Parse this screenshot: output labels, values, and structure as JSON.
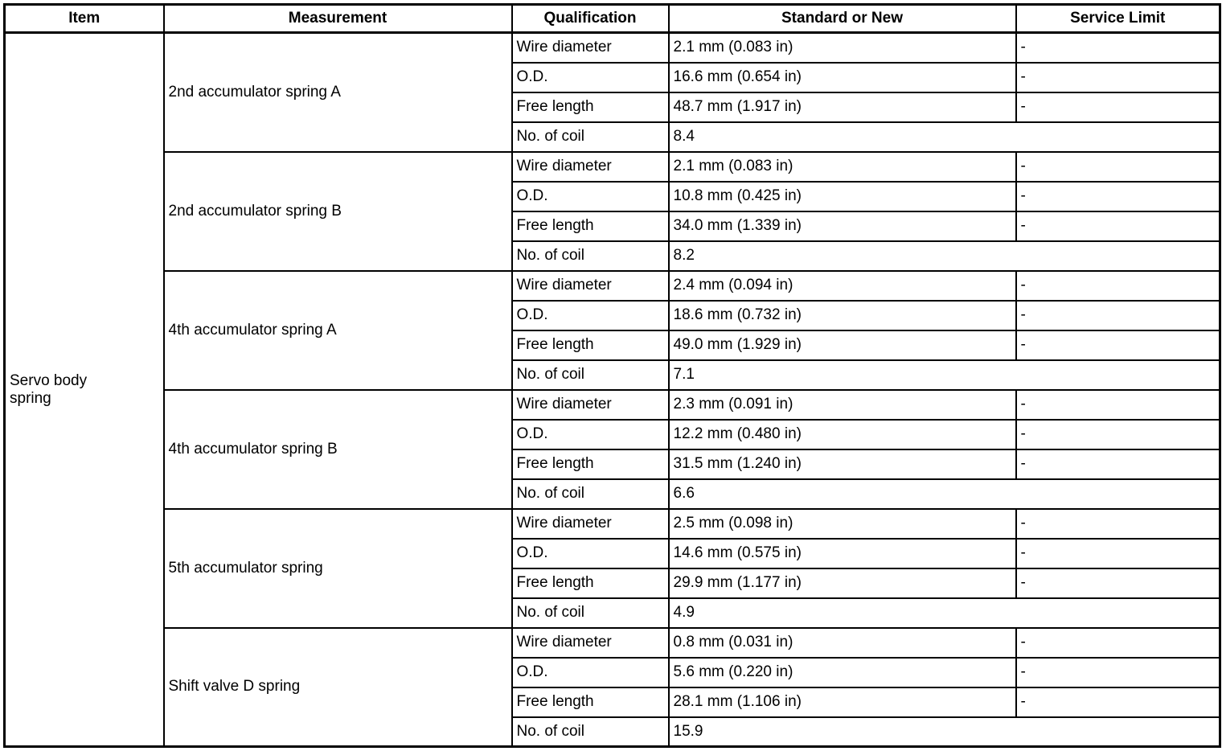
{
  "table": {
    "columns": [
      "Item",
      "Measurement",
      "Qualification",
      "Standard or New",
      "Service Limit"
    ],
    "item": "Servo body spring",
    "no_value_mark": "-",
    "groups": [
      {
        "measurement": "2nd accumulator spring A",
        "rows": [
          {
            "qualification": "Wire diameter",
            "standard": "2.1 mm (0.083 in)",
            "service_limit": "-",
            "span": false
          },
          {
            "qualification": "O.D.",
            "standard": "16.6 mm (0.654 in)",
            "service_limit": "-",
            "span": false
          },
          {
            "qualification": "Free length",
            "standard": "48.7 mm (1.917 in)",
            "service_limit": "-",
            "span": false
          },
          {
            "qualification": "No. of coil",
            "standard": "8.4",
            "service_limit": "",
            "span": true
          }
        ]
      },
      {
        "measurement": "2nd accumulator spring B",
        "rows": [
          {
            "qualification": "Wire diameter",
            "standard": "2.1 mm (0.083 in)",
            "service_limit": "-",
            "span": false
          },
          {
            "qualification": "O.D.",
            "standard": "10.8 mm (0.425 in)",
            "service_limit": "-",
            "span": false
          },
          {
            "qualification": "Free length",
            "standard": "34.0 mm (1.339 in)",
            "service_limit": "-",
            "span": false
          },
          {
            "qualification": "No. of coil",
            "standard": "8.2",
            "service_limit": "",
            "span": true
          }
        ]
      },
      {
        "measurement": "4th accumulator spring A",
        "rows": [
          {
            "qualification": "Wire diameter",
            "standard": "2.4 mm (0.094 in)",
            "service_limit": "-",
            "span": false
          },
          {
            "qualification": "O.D.",
            "standard": "18.6 mm (0.732 in)",
            "service_limit": "-",
            "span": false
          },
          {
            "qualification": "Free length",
            "standard": "49.0 mm (1.929 in)",
            "service_limit": "-",
            "span": false
          },
          {
            "qualification": "No. of coil",
            "standard": "7.1",
            "service_limit": "",
            "span": true
          }
        ]
      },
      {
        "measurement": "4th accumulator spring B",
        "rows": [
          {
            "qualification": "Wire diameter",
            "standard": "2.3 mm (0.091 in)",
            "service_limit": "-",
            "span": false
          },
          {
            "qualification": "O.D.",
            "standard": "12.2 mm (0.480 in)",
            "service_limit": "-",
            "span": false
          },
          {
            "qualification": "Free length",
            "standard": "31.5 mm (1.240 in)",
            "service_limit": "-",
            "span": false
          },
          {
            "qualification": "No. of coil",
            "standard": "6.6",
            "service_limit": "",
            "span": true
          }
        ]
      },
      {
        "measurement": "5th accumulator spring",
        "rows": [
          {
            "qualification": "Wire diameter",
            "standard": "2.5 mm (0.098 in)",
            "service_limit": "-",
            "span": false
          },
          {
            "qualification": "O.D.",
            "standard": "14.6 mm (0.575 in)",
            "service_limit": "-",
            "span": false
          },
          {
            "qualification": "Free length",
            "standard": "29.9 mm (1.177 in)",
            "service_limit": "-",
            "span": false
          },
          {
            "qualification": "No. of coil",
            "standard": "4.9",
            "service_limit": "",
            "span": true
          }
        ]
      },
      {
        "measurement": "Shift valve D spring",
        "rows": [
          {
            "qualification": "Wire diameter",
            "standard": "0.8 mm (0.031 in)",
            "service_limit": "-",
            "span": false
          },
          {
            "qualification": "O.D.",
            "standard": "5.6 mm (0.220 in)",
            "service_limit": "-",
            "span": false
          },
          {
            "qualification": "Free length",
            "standard": "28.1 mm (1.106 in)",
            "service_limit": "-",
            "span": false
          },
          {
            "qualification": "No. of coil",
            "standard": "15.9",
            "service_limit": "",
            "span": true
          }
        ]
      }
    ]
  }
}
